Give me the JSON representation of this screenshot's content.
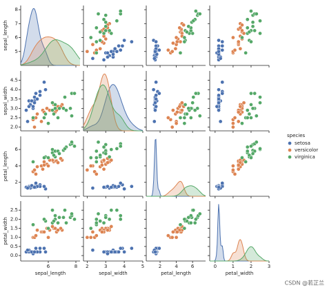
{
  "chart_data": {
    "type": "pairplot",
    "variables": [
      "sepal_length",
      "sepal_width",
      "petal_length",
      "petal_width"
    ],
    "axes": {
      "sepal_length": {
        "lim": [
          4,
          8.3
        ],
        "xticks": [
          6,
          8
        ],
        "yticks": [
          5,
          6,
          7,
          8
        ]
      },
      "sepal_width": {
        "lim": [
          1.8,
          5
        ],
        "xticks": [
          2,
          3,
          4,
          5
        ],
        "yticks": [
          {
            "value": 2,
            "label": "2.0"
          },
          2.5,
          {
            "value": 3,
            "label": "3.0"
          },
          3.5,
          {
            "value": 4,
            "label": "4.0"
          },
          4.5
        ]
      },
      "petal_length": {
        "lim": [
          0.3,
          7.6
        ],
        "xticks": [
          2,
          4,
          6
        ],
        "yticks": [
          2,
          4,
          6
        ]
      },
      "petal_width": {
        "lim": [
          -0.3,
          3
        ],
        "xticks": [
          0,
          1,
          2,
          3
        ],
        "yticks": [
          {
            "value": 0,
            "label": "0.0"
          },
          0.5,
          {
            "value": 1,
            "label": "1.0"
          },
          1.5,
          {
            "value": 2,
            "label": "2.0"
          },
          2.5
        ]
      }
    },
    "legend_title": "species",
    "series": [
      {
        "name": "setosa",
        "color": "#4c72b0",
        "values": {
          "sepal_length": [
            5.1,
            4.9,
            4.7,
            4.6,
            5.0,
            5.4,
            4.6,
            5.0,
            4.4,
            4.9,
            5.4,
            4.8,
            5.8,
            5.7,
            5.2,
            4.5,
            5.1,
            5.0
          ],
          "sepal_width": [
            3.5,
            3.0,
            3.2,
            3.1,
            3.6,
            3.9,
            3.4,
            3.4,
            2.9,
            3.1,
            3.7,
            3.4,
            4.0,
            4.4,
            3.5,
            2.3,
            3.8,
            3.3
          ],
          "petal_length": [
            1.4,
            1.4,
            1.3,
            1.5,
            1.4,
            1.7,
            1.4,
            1.5,
            1.4,
            1.5,
            1.5,
            1.6,
            1.2,
            1.5,
            1.5,
            1.3,
            1.9,
            1.4
          ],
          "petal_width": [
            0.2,
            0.2,
            0.2,
            0.2,
            0.2,
            0.4,
            0.3,
            0.2,
            0.2,
            0.1,
            0.2,
            0.2,
            0.2,
            0.4,
            0.2,
            0.3,
            0.4,
            0.2
          ]
        }
      },
      {
        "name": "versicolor",
        "color": "#dd8452",
        "values": {
          "sepal_length": [
            7.0,
            6.4,
            6.9,
            5.5,
            6.5,
            5.7,
            6.3,
            4.9,
            6.6,
            5.2,
            5.0,
            5.9,
            6.0,
            6.1,
            5.6,
            6.7,
            5.1,
            5.7
          ],
          "sepal_width": [
            3.2,
            3.2,
            3.1,
            2.3,
            2.8,
            2.8,
            3.3,
            2.4,
            2.9,
            2.7,
            2.0,
            3.0,
            2.2,
            2.9,
            2.9,
            3.1,
            2.5,
            2.8
          ],
          "petal_length": [
            4.7,
            4.5,
            4.9,
            4.0,
            4.6,
            4.5,
            4.7,
            3.3,
            4.6,
            3.9,
            3.5,
            4.2,
            4.0,
            4.7,
            3.6,
            4.4,
            3.0,
            4.1
          ],
          "petal_width": [
            1.4,
            1.5,
            1.5,
            1.3,
            1.5,
            1.3,
            1.6,
            1.0,
            1.3,
            1.4,
            1.0,
            1.5,
            1.0,
            1.4,
            1.3,
            1.4,
            1.1,
            1.3
          ]
        }
      },
      {
        "name": "virginica",
        "color": "#55a868",
        "values": {
          "sepal_length": [
            6.3,
            5.8,
            7.1,
            6.3,
            6.5,
            7.6,
            4.9,
            7.3,
            6.7,
            7.2,
            6.5,
            6.4,
            6.8,
            5.7,
            7.7,
            7.7,
            6.0,
            7.9
          ],
          "sepal_width": [
            3.3,
            2.7,
            3.0,
            2.9,
            3.0,
            3.0,
            2.5,
            2.9,
            2.5,
            3.6,
            3.2,
            2.7,
            3.0,
            2.5,
            3.8,
            2.6,
            2.2,
            3.8
          ],
          "petal_length": [
            6.0,
            5.1,
            5.9,
            5.6,
            5.8,
            6.6,
            4.5,
            6.3,
            5.8,
            6.1,
            5.1,
            5.3,
            5.5,
            5.0,
            6.7,
            6.9,
            5.0,
            6.4
          ],
          "petal_width": [
            2.5,
            1.9,
            2.1,
            1.8,
            2.2,
            2.1,
            1.7,
            1.8,
            1.8,
            2.5,
            2.0,
            1.9,
            2.1,
            2.0,
            2.2,
            2.3,
            1.5,
            2.0
          ]
        }
      }
    ],
    "watermark": "CSDN @若芷兰"
  }
}
